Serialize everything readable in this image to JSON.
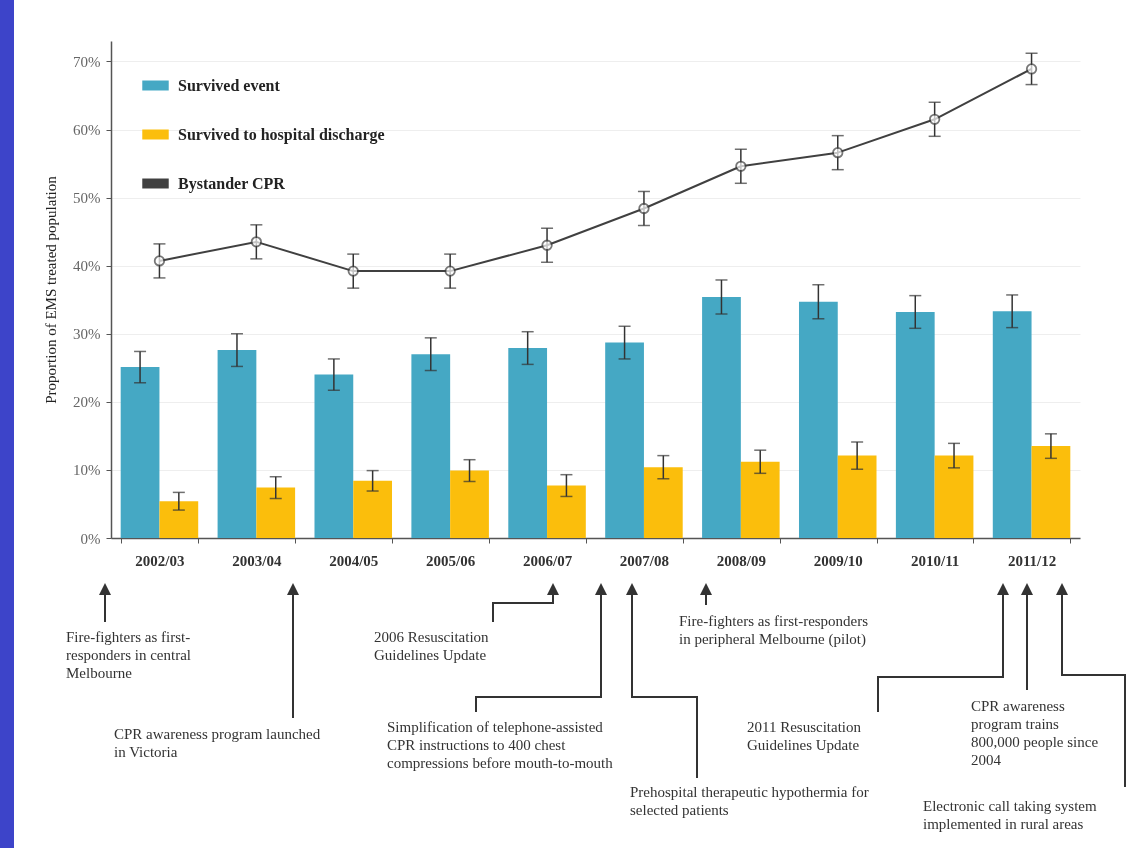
{
  "chart_data": {
    "type": "bar",
    "ylabel": "Proportion of EMS treated population",
    "categories": [
      "2002/03",
      "2003/04",
      "2004/05",
      "2005/06",
      "2006/07",
      "2007/08",
      "2008/09",
      "2009/10",
      "2010/11",
      "2011/12"
    ],
    "series": [
      {
        "name": "Survived event",
        "color": "#45a8c4",
        "values": [
          25.1,
          27.6,
          24.0,
          27.0,
          27.9,
          28.7,
          35.4,
          34.7,
          33.2,
          33.3
        ],
        "errors": [
          2.3,
          2.4,
          2.3,
          2.4,
          2.4,
          2.4,
          2.5,
          2.5,
          2.4,
          2.4
        ]
      },
      {
        "name": "Survived to hospital discharge",
        "color": "#fbbe0c",
        "values": [
          5.4,
          7.4,
          8.4,
          9.9,
          7.7,
          10.4,
          11.2,
          12.1,
          12.1,
          13.5
        ],
        "errors": [
          1.3,
          1.6,
          1.5,
          1.6,
          1.6,
          1.7,
          1.7,
          2.0,
          1.8,
          1.8
        ]
      },
      {
        "name": "Bystander CPR",
        "type": "line",
        "color": "#404040",
        "values": [
          40.7,
          43.5,
          39.2,
          39.2,
          43.0,
          48.4,
          54.6,
          56.6,
          61.5,
          68.9
        ],
        "errors": [
          2.5,
          2.5,
          2.5,
          2.5,
          2.5,
          2.5,
          2.5,
          2.5,
          2.5,
          2.3
        ]
      }
    ],
    "ylim": [
      0,
      73
    ],
    "yticks": [
      {
        "value": 0,
        "label": "0%"
      },
      {
        "value": 10,
        "label": "10%"
      },
      {
        "value": 20,
        "label": "20%"
      },
      {
        "value": 30,
        "label": "30%"
      },
      {
        "value": 40,
        "label": "40%"
      },
      {
        "value": 50,
        "label": "50%"
      },
      {
        "value": 60,
        "label": "60%"
      },
      {
        "value": 70,
        "label": "70%"
      }
    ],
    "grid": "y",
    "legend": "top left",
    "marker": "circle",
    "annotations": [
      "Fire-fighters as first-responders in central Melbourne",
      "CPR awareness program launched in Victoria",
      "2006 Resuscitation Guidelines Update",
      "Simplification of telephone-assisted CPR instructions to 400 chest compressions before mouth-to-mouth",
      "Prehospital therapeutic hypothermia for selected patients",
      "Fire-fighters as first-responders in peripheral Melbourne (pilot)",
      "2011 Resuscitation Guidelines Update",
      "CPR awareness program trains 800,000 people since 2004",
      "Electronic call taking system implemented in rural areas"
    ]
  }
}
